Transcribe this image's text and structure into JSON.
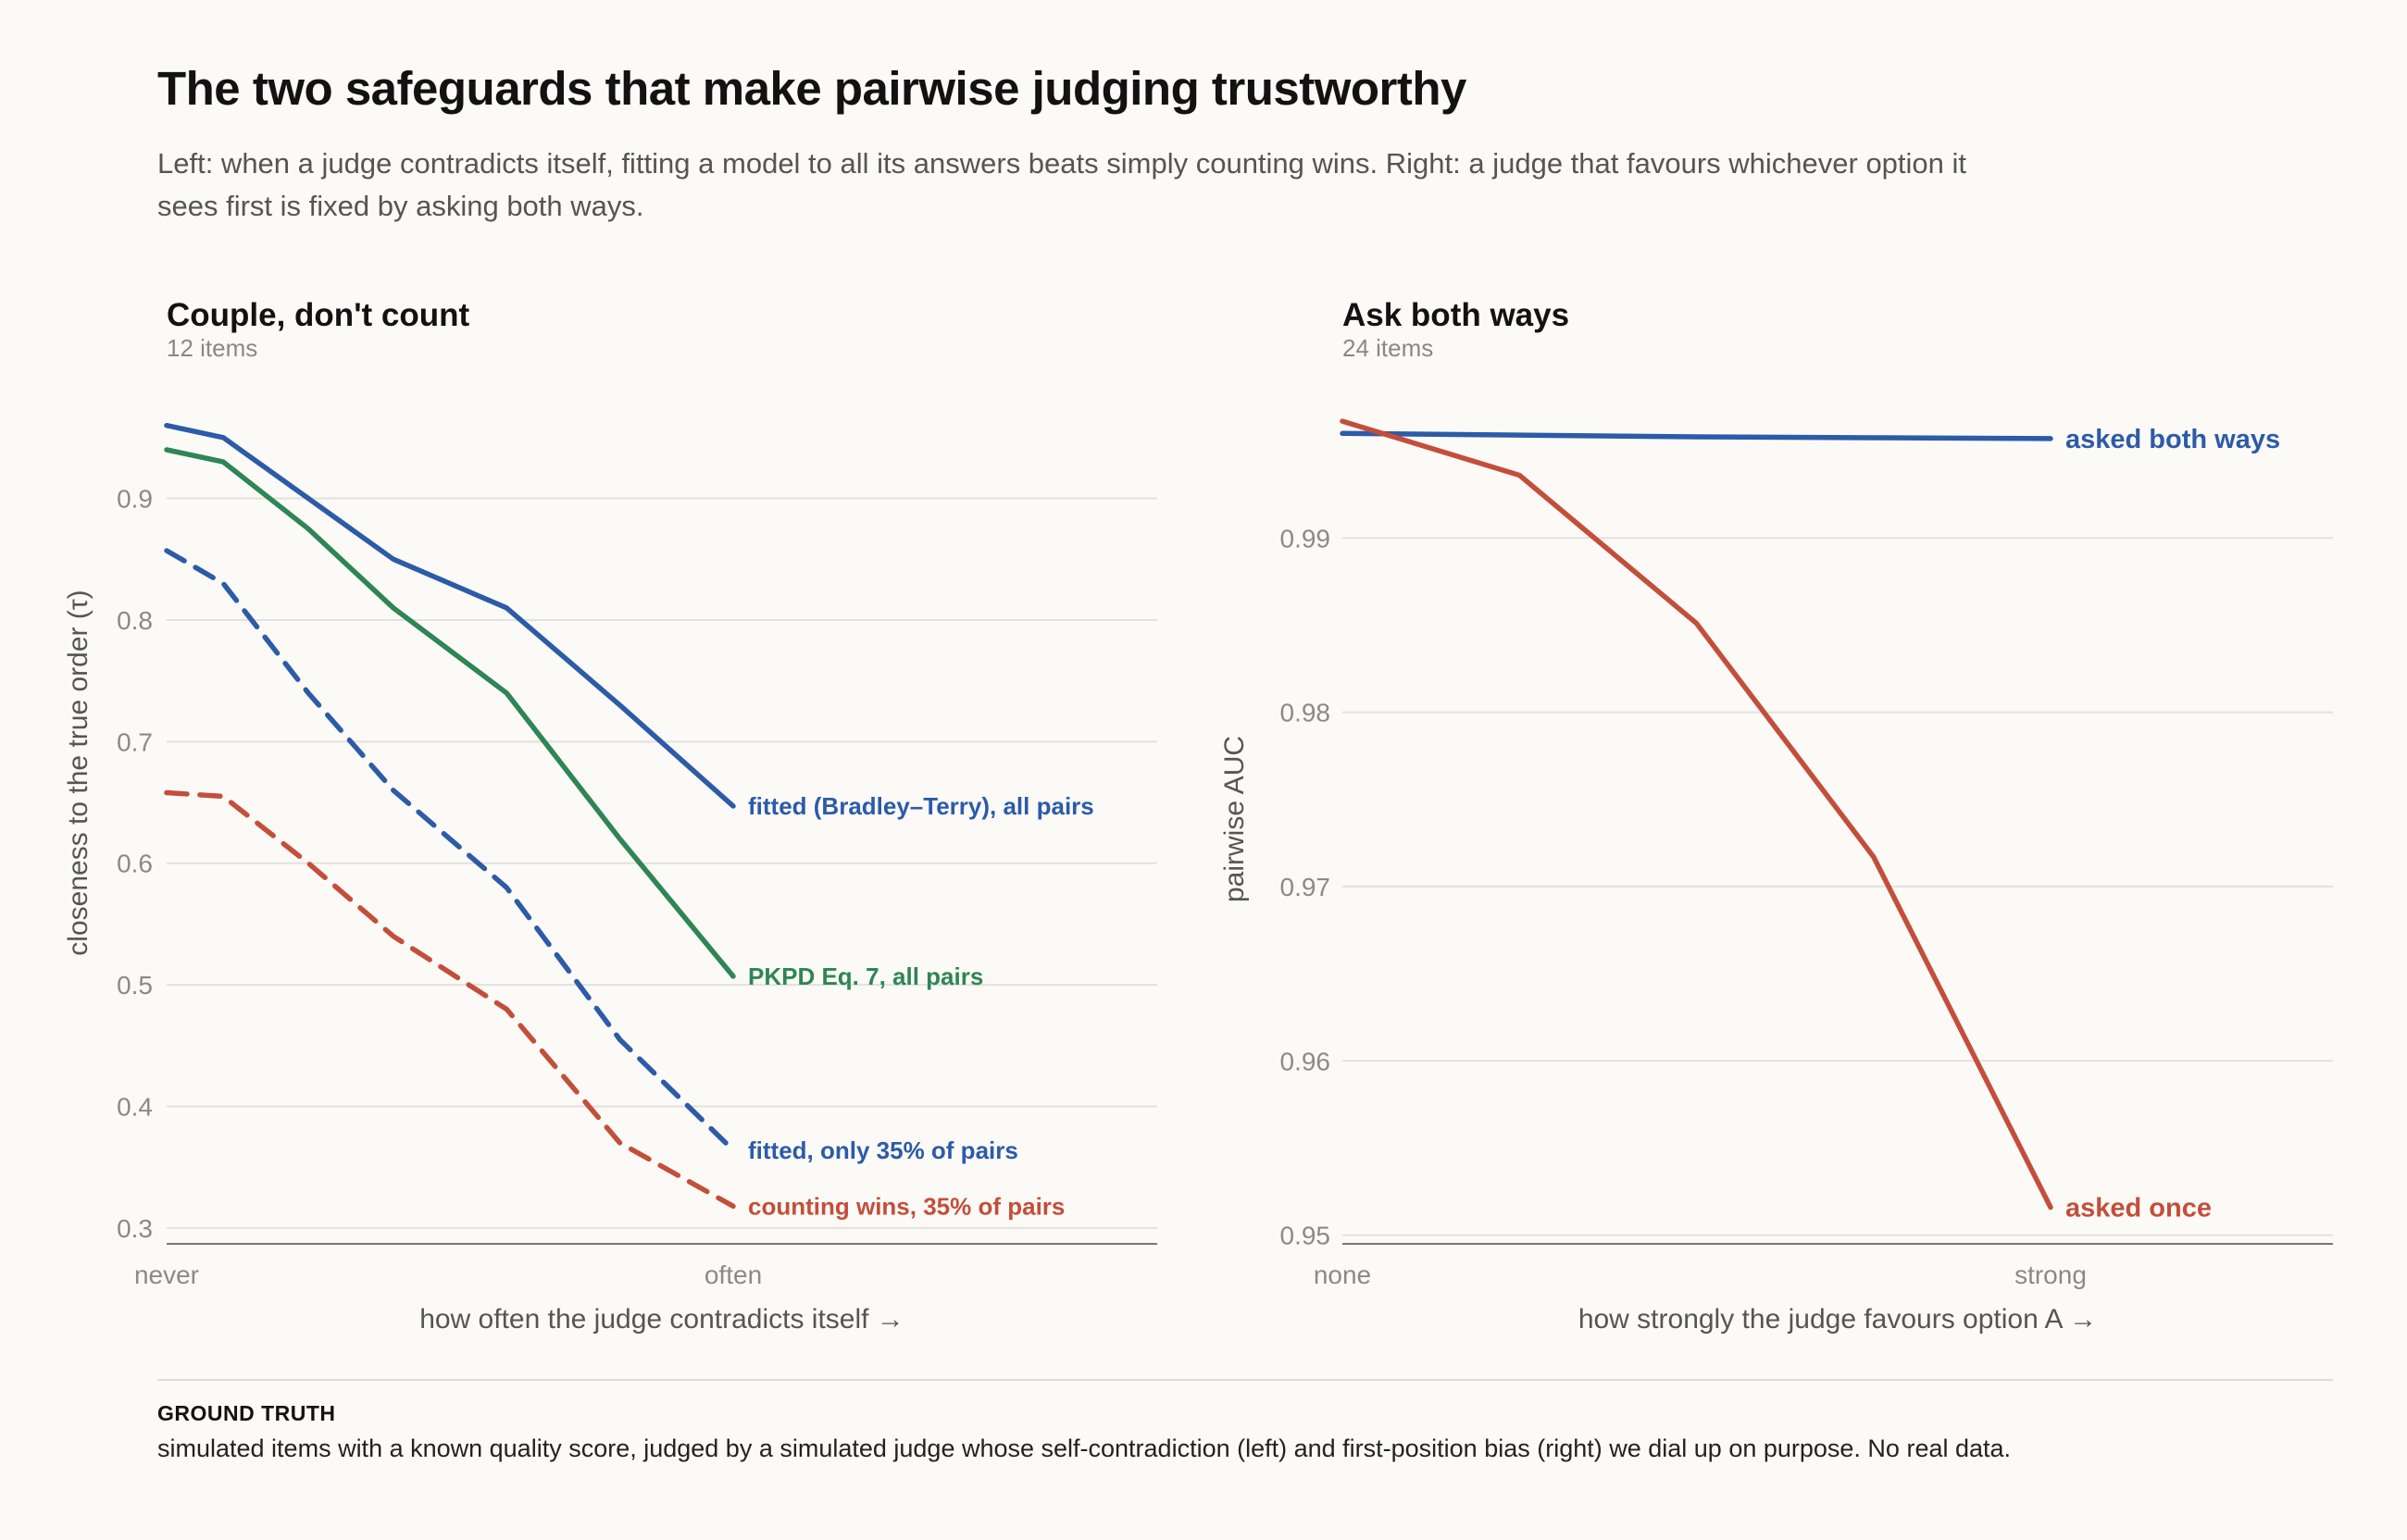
{
  "title": "The two safeguards that make pairwise judging trustworthy",
  "subtitle": "Left: when a judge contradicts itself, fitting a model to all its answers beats simply counting wins. Right: a judge that favours whichever option it sees first is fixed by asking both ways.",
  "footer": {
    "heading": "GROUND TRUTH",
    "text": "simulated items with a known quality score, judged by a simulated judge whose self-contradiction (left) and first-position bias (right) we dial up on purpose. No real data."
  },
  "chart_data": [
    {
      "type": "line",
      "title": "Couple, don't count",
      "subtitle": "12 items",
      "xlabel": "how often the judge contradicts itself →",
      "ylabel": "closeness to the true order (τ)",
      "x_tick_labels": [
        "never",
        "often"
      ],
      "y_ticks": [
        0.3,
        0.4,
        0.5,
        0.6,
        0.7,
        0.8,
        0.9
      ],
      "ylim": [
        0.287,
        0.975
      ],
      "x": [
        0,
        0.1,
        0.25,
        0.4,
        0.6,
        0.8,
        1.0
      ],
      "grid": true,
      "legend": "direct labels at line ends",
      "series": [
        {
          "name": "fitted (Bradley–Terry), all pairs",
          "color": "#2c5ba8",
          "dash": false,
          "values": [
            0.96,
            0.95,
            0.9,
            0.85,
            0.81,
            0.73,
            0.647
          ]
        },
        {
          "name": "PKPD Eq. 7, all pairs",
          "color": "#2e8555",
          "dash": false,
          "values": [
            0.94,
            0.93,
            0.875,
            0.81,
            0.74,
            0.62,
            0.507
          ]
        },
        {
          "name": "fitted, only 35% of pairs",
          "color": "#2c5ba8",
          "dash": true,
          "values": [
            0.857,
            0.83,
            0.74,
            0.66,
            0.58,
            0.455,
            0.364
          ]
        },
        {
          "name": "counting wins, 35% of pairs",
          "color": "#c44e3a",
          "dash": true,
          "values": [
            0.658,
            0.655,
            0.6,
            0.54,
            0.48,
            0.37,
            0.318
          ]
        }
      ]
    },
    {
      "type": "line",
      "title": "Ask both ways",
      "subtitle": "24 items",
      "xlabel": "how strongly the judge favours option A →",
      "ylabel": "pairwise AUC",
      "x_tick_labels": [
        "none",
        "strong"
      ],
      "y_ticks": [
        0.95,
        0.96,
        0.97,
        0.98,
        0.99
      ],
      "ylim": [
        0.9495,
        0.9975
      ],
      "x": [
        0,
        0.25,
        0.5,
        0.75,
        1.0
      ],
      "grid": true,
      "legend": "direct labels at line ends",
      "series": [
        {
          "name": "asked both ways",
          "color": "#2c5ba8",
          "dash": false,
          "values": [
            0.996,
            0.9959,
            0.9958,
            0.99575,
            0.9957
          ]
        },
        {
          "name": "asked once",
          "color": "#c44e3a",
          "dash": false,
          "values": [
            0.9967,
            0.9936,
            0.9851,
            0.9717,
            0.9516
          ]
        }
      ]
    }
  ]
}
